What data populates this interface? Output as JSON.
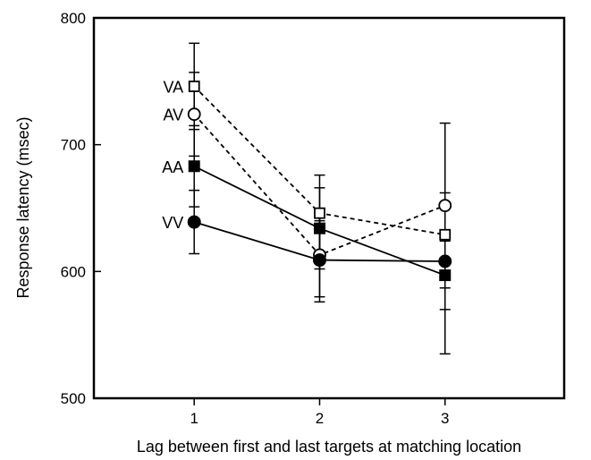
{
  "chart_data": {
    "type": "line",
    "title": "",
    "xlabel": "Lag between first and last targets at matching location",
    "ylabel": "Response latency (msec)",
    "x": [
      1,
      2,
      3
    ],
    "x_tick_labels": [
      "1",
      "2",
      "3"
    ],
    "xlim": [
      0.2,
      3.95
    ],
    "ylim": [
      500,
      800
    ],
    "y_ticks": [
      500,
      600,
      700,
      800
    ],
    "y_tick_labels": [
      "500",
      "600",
      "700",
      "800"
    ],
    "grid": false,
    "series": [
      {
        "name": "VA",
        "marker": "open-square",
        "line_style": "dashed",
        "values": [
          746,
          646,
          629
        ],
        "error_upper": [
          780,
          676,
          662
        ],
        "error_lower": [
          712,
          616,
          596
        ]
      },
      {
        "name": "AV",
        "marker": "open-circle",
        "line_style": "dashed",
        "values": [
          724,
          613,
          652
        ],
        "error_upper": [
          757,
          646,
          717
        ],
        "error_lower": [
          691,
          580,
          587
        ]
      },
      {
        "name": "AA",
        "marker": "filled-square",
        "line_style": "solid",
        "values": [
          683,
          634,
          597
        ],
        "error_upper": [
          715,
          666,
          624
        ],
        "error_lower": [
          651,
          602,
          535
        ]
      },
      {
        "name": "VV",
        "marker": "filled-circle",
        "line_style": "solid",
        "values": [
          639,
          609,
          608
        ],
        "error_upper": [
          664,
          640,
          626
        ],
        "error_lower": [
          614,
          576,
          570
        ]
      }
    ]
  }
}
